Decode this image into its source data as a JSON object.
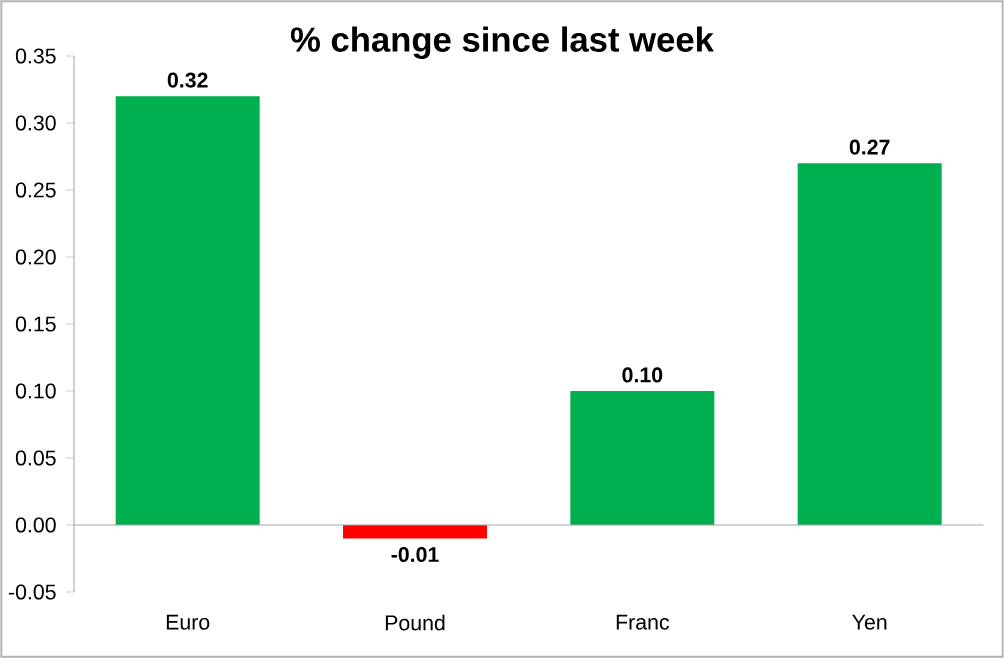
{
  "chart_data": {
    "type": "bar",
    "title": "% change since last week",
    "categories": [
      "Euro",
      "Pound",
      "Franc",
      "Yen"
    ],
    "values": [
      0.32,
      -0.01,
      0.1,
      0.27
    ],
    "colors": [
      "#00b050",
      "#ff0000",
      "#00b050",
      "#00b050"
    ],
    "value_labels": [
      "0.32",
      "-0.01",
      "0.10",
      "0.27"
    ],
    "ylim": [
      -0.05,
      0.35
    ],
    "yticks": [
      {
        "value": -0.05,
        "label": "-0.05"
      },
      {
        "value": 0,
        "label": "0.00"
      },
      {
        "value": 0.05,
        "label": "0.05"
      },
      {
        "value": 0.1,
        "label": "0.10"
      },
      {
        "value": 0.15,
        "label": "0.15"
      },
      {
        "value": 0.2,
        "label": "0.20"
      },
      {
        "value": 0.25,
        "label": "0.25"
      },
      {
        "value": 0.3,
        "label": "0.30"
      },
      {
        "value": 0.35,
        "label": "0.35"
      }
    ]
  }
}
